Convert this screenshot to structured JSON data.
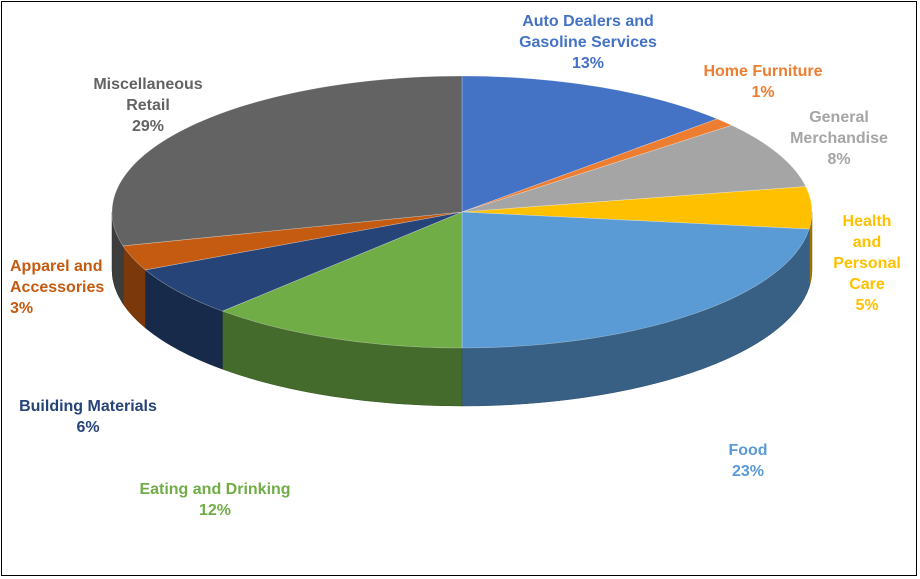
{
  "chart_data": {
    "type": "pie",
    "title": "",
    "legend": "none",
    "slices": [
      {
        "name": "Auto Dealers and Gasoline Services",
        "lines": [
          "Auto Dealers and",
          "Gasoline Services"
        ],
        "value": 13,
        "pct": "13%",
        "color": "#4472C4",
        "label_color": "#4472C4"
      },
      {
        "name": "Home Furniture",
        "lines": [
          "Home Furniture"
        ],
        "value": 1,
        "pct": "1%",
        "color": "#ED7D31",
        "label_color": "#ED7D31"
      },
      {
        "name": "General Merchandise",
        "lines": [
          "General",
          "Merchandise"
        ],
        "value": 8,
        "pct": "8%",
        "color": "#A5A5A5",
        "label_color": "#A5A5A5"
      },
      {
        "name": "Health and Personal Care",
        "lines": [
          "Health",
          "and",
          "Personal",
          "Care"
        ],
        "value": 5,
        "pct": "5%",
        "color": "#FFC000",
        "label_color": "#FFC000"
      },
      {
        "name": "Food",
        "lines": [
          "Food"
        ],
        "value": 23,
        "pct": "23%",
        "color": "#5B9BD5",
        "label_color": "#5B9BD5"
      },
      {
        "name": "Eating and Drinking",
        "lines": [
          "Eating and Drinking"
        ],
        "value": 12,
        "pct": "12%",
        "color": "#70AD47",
        "label_color": "#70AD47"
      },
      {
        "name": "Building Materials",
        "lines": [
          "Building Materials"
        ],
        "value": 6,
        "pct": "6%",
        "color": "#264478",
        "label_color": "#264478"
      },
      {
        "name": "Apparel and Accessories",
        "lines": [
          "Apparel and",
          "Accessories"
        ],
        "value": 3,
        "pct": "3%",
        "color": "#C55A11",
        "label_color": "#C55A11"
      },
      {
        "name": "Miscellaneous Retail",
        "lines": [
          "Miscellaneous",
          "Retail"
        ],
        "value": 29,
        "pct": "29%",
        "color": "#636363",
        "label_color": "#636363"
      }
    ]
  }
}
